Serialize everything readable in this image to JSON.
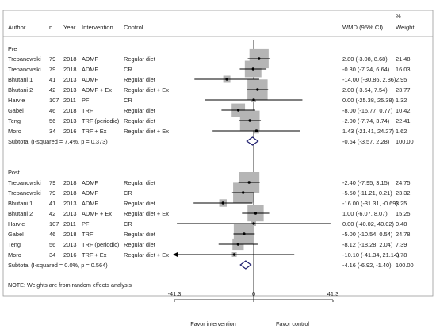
{
  "header": {
    "author": "Author",
    "n": "n",
    "year": "Year",
    "intervention": "Intervention",
    "control": "Control",
    "effect": "WMD (95% CI)",
    "weight_line1": "%",
    "weight_line2": "Weight"
  },
  "note": "NOTE: Weights are from random effects analysis",
  "colors": {
    "box": "#b5b5b5",
    "diamond": "#1f1f6e",
    "line": "#000000",
    "arrow": "#000000"
  },
  "chart_data": {
    "type": "forest",
    "xlim": [
      -41.3,
      41.3
    ],
    "xticks": [
      -41.3,
      0,
      41.3
    ],
    "xtick_labels": [
      "-41.3",
      "0",
      "41.3"
    ],
    "favor_left": "Favor intervention",
    "favor_right": "Favor control",
    "groups": [
      {
        "label": "Pre",
        "studies": [
          {
            "author": "Trepanowski",
            "n": "79",
            "year": "2018",
            "intervention": "ADMF",
            "control": "Regular diet",
            "wmd": 2.8,
            "lo": -3.08,
            "hi": 8.68,
            "ci_text": "2.80 (-3.08, 8.68)",
            "weight": "21.48"
          },
          {
            "author": "Trepanowski",
            "n": "79",
            "year": "2018",
            "intervention": "ADMF",
            "control": "CR",
            "wmd": -0.3,
            "lo": -7.24,
            "hi": 6.64,
            "ci_text": "-0.30 (-7.24, 6.64)",
            "weight": "16.03"
          },
          {
            "author": "Bhutani 1",
            "n": "41",
            "year": "2013",
            "intervention": "ADMF",
            "control": "Regular diet",
            "wmd": -14.0,
            "lo": -30.86,
            "hi": 2.86,
            "ci_text": "-14.00 (-30.86, 2.86)",
            "weight": "2.95"
          },
          {
            "author": "Bhutani 2",
            "n": "42",
            "year": "2013",
            "intervention": "ADMF + Ex",
            "control": "Regular diet + Ex",
            "wmd": 2.0,
            "lo": -3.54,
            "hi": 7.54,
            "ci_text": "2.00 (-3.54, 7.54)",
            "weight": "23.77"
          },
          {
            "author": "Harvie",
            "n": "107",
            "year": "2011",
            "intervention": "PF",
            "control": "CR",
            "wmd": 0.0,
            "lo": -25.38,
            "hi": 25.38,
            "ci_text": "0.00 (-25.38, 25.38)",
            "weight": "1.32"
          },
          {
            "author": "Gabel",
            "n": "46",
            "year": "2018",
            "intervention": "TRF",
            "control": "Regular diet",
            "wmd": -8.0,
            "lo": -16.77,
            "hi": 0.77,
            "ci_text": "-8.00 (-16.77, 0.77)",
            "weight": "10.42"
          },
          {
            "author": "Teng",
            "n": "56",
            "year": "2013",
            "intervention": "TRF (periodic)",
            "control": "Regular diet",
            "wmd": -2.0,
            "lo": -7.74,
            "hi": 3.74,
            "ci_text": "-2.00 (-7.74, 3.74)",
            "weight": "22.41"
          },
          {
            "author": "Moro",
            "n": "34",
            "year": "2016",
            "intervention": "TRF + Ex",
            "control": "Regular diet + Ex",
            "wmd": 1.43,
            "lo": -21.41,
            "hi": 24.27,
            "ci_text": "1.43 (-21.41, 24.27)",
            "weight": "1.62"
          }
        ],
        "subtotal": {
          "label": "Subtotal  (I-squared = 7.4%, p = 0.373)",
          "wmd": -0.64,
          "lo": -3.57,
          "hi": 2.28,
          "ci_text": "-0.64 (-3.57, 2.28)",
          "weight": "100.00"
        }
      },
      {
        "label": "Post",
        "studies": [
          {
            "author": "Trepanowski",
            "n": "79",
            "year": "2018",
            "intervention": "ADMF",
            "control": "Regular diet",
            "wmd": -2.4,
            "lo": -7.95,
            "hi": 3.15,
            "ci_text": "-2.40 (-7.95, 3.15)",
            "weight": "24.75"
          },
          {
            "author": "Trepanowski",
            "n": "79",
            "year": "2018",
            "intervention": "ADMF",
            "control": "CR",
            "wmd": -5.5,
            "lo": -11.21,
            "hi": 0.21,
            "ci_text": "-5.50 (-11.21, 0.21)",
            "weight": "23.32"
          },
          {
            "author": "Bhutani 1",
            "n": "41",
            "year": "2013",
            "intervention": "ADMF",
            "control": "Regular diet",
            "wmd": -16.0,
            "lo": -31.31,
            "hi": -0.69,
            "ci_text": "-16.00 (-31.31, -0.69)",
            "weight": "3.25"
          },
          {
            "author": "Bhutani 2",
            "n": "42",
            "year": "2013",
            "intervention": "ADMF + Ex",
            "control": "Regular diet + Ex",
            "wmd": 1.0,
            "lo": -6.07,
            "hi": 8.07,
            "ci_text": "1.00 (-6.07, 8.07)",
            "weight": "15.25"
          },
          {
            "author": "Harvie",
            "n": "107",
            "year": "2011",
            "intervention": "PF",
            "control": "CR",
            "wmd": 0.0,
            "lo": -40.02,
            "hi": 40.02,
            "ci_text": "0.00 (-40.02, 40.02)",
            "weight": "0.48"
          },
          {
            "author": "Gabel",
            "n": "46",
            "year": "2018",
            "intervention": "TRF",
            "control": "Regular diet",
            "wmd": -5.0,
            "lo": -10.54,
            "hi": 0.54,
            "ci_text": "-5.00 (-10.54, 0.54)",
            "weight": "24.78"
          },
          {
            "author": "Teng",
            "n": "56",
            "year": "2013",
            "intervention": "TRF (periodic)",
            "control": "Regular diet",
            "wmd": -8.12,
            "lo": -18.28,
            "hi": 2.04,
            "ci_text": "-8.12 (-18.28, 2.04)",
            "weight": "7.39"
          },
          {
            "author": "Moro",
            "n": "34",
            "year": "2016",
            "intervention": "TRF + Ex",
            "control": "Regular diet + Ex",
            "wmd": -10.1,
            "lo": -41.34,
            "hi": 21.14,
            "ci_text": "-10.10 (-41.34, 21.14)",
            "weight": "0.78"
          }
        ],
        "subtotal": {
          "label": "Subtotal  (I-squared = 0.0%, p = 0.564)",
          "wmd": -4.16,
          "lo": -6.92,
          "hi": -1.4,
          "ci_text": "-4.16 (-6.92, -1.40)",
          "weight": "100.00"
        }
      }
    ]
  }
}
